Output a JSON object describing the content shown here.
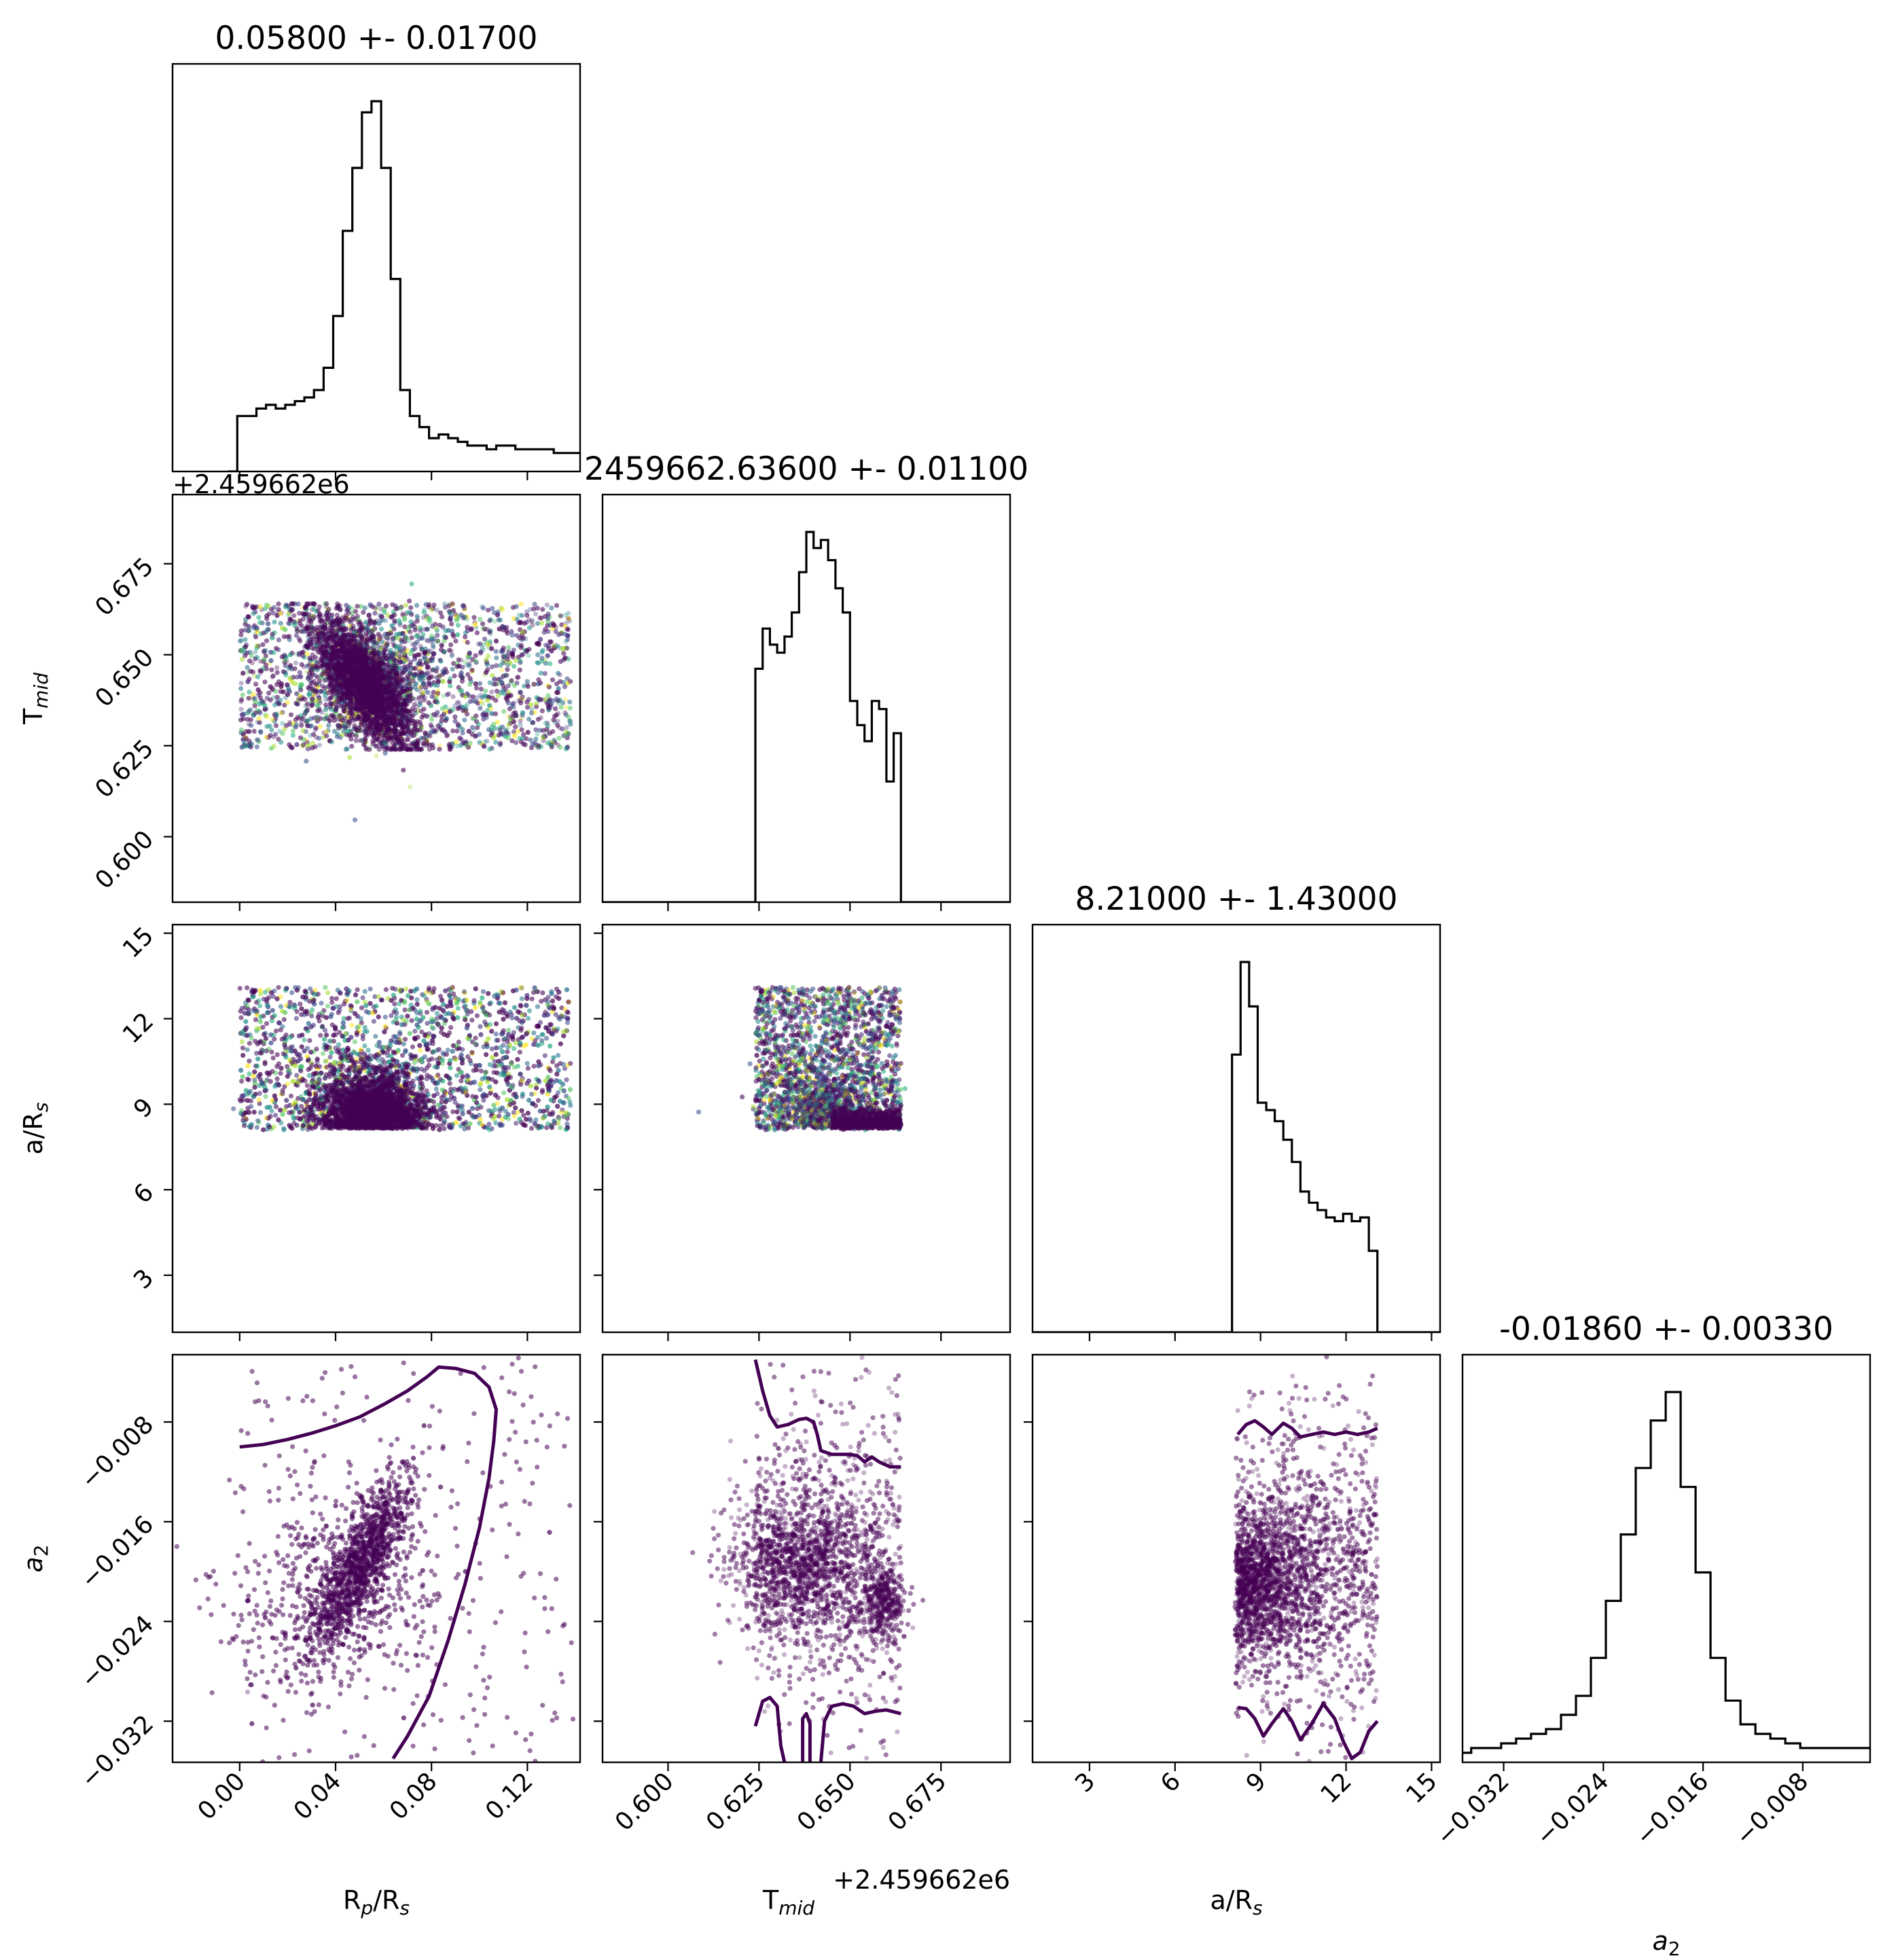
{
  "chart_data": {
    "type": "scatter",
    "variables": [
      {
        "key": "rp",
        "label": "R_p/R_s",
        "range": [
          -0.028,
          0.142
        ],
        "ticks": [
          0.0,
          0.04,
          0.08,
          0.12
        ],
        "tick_labels": [
          "0.00",
          "0.04",
          "0.08",
          "0.12"
        ],
        "title": "0.05800 +- 0.01700",
        "offset": ""
      },
      {
        "key": "tmid",
        "label": "T_mid",
        "range": [
          0.582,
          0.694
        ],
        "ticks": [
          0.6,
          0.625,
          0.65,
          0.675
        ],
        "tick_labels": [
          "0.600",
          "0.625",
          "0.650",
          "0.675"
        ],
        "title": "2459662.63600 +- 0.01100",
        "offset": "+2.459662e6"
      },
      {
        "key": "ars",
        "label": "a/R_s",
        "range": [
          1.0,
          15.3
        ],
        "ticks": [
          3,
          6,
          9,
          12,
          15
        ],
        "tick_labels": [
          "3",
          "6",
          "9",
          "12",
          "15"
        ],
        "title": "8.21000 +- 1.43000",
        "offset": ""
      },
      {
        "key": "a2",
        "label": "a_2",
        "range": [
          -0.0353,
          -0.0026
        ],
        "ticks": [
          -0.032,
          -0.024,
          -0.016,
          -0.008
        ],
        "tick_labels": [
          "−0.032",
          "−0.024",
          "−0.016",
          "−0.008"
        ],
        "title": "-0.01860 +- 0.00330",
        "offset": ""
      }
    ],
    "histograms": {
      "rp": {
        "bins": [
          -0.005,
          -0.001,
          0.003,
          0.007,
          0.011,
          0.015,
          0.019,
          0.023,
          0.027,
          0.031,
          0.035,
          0.039,
          0.043,
          0.047,
          0.051,
          0.055,
          0.059,
          0.063,
          0.067,
          0.071,
          0.075,
          0.079,
          0.083,
          0.087,
          0.091,
          0.095,
          0.099,
          0.103,
          0.107,
          0.111,
          0.115,
          0.119,
          0.123,
          0.127,
          0.131,
          0.135,
          0.139,
          0.142
        ],
        "counts": [
          0,
          15,
          15,
          17,
          18,
          17,
          18,
          19,
          20,
          22,
          28,
          42,
          65,
          82,
          97,
          100,
          82,
          52,
          22,
          15,
          12,
          9,
          10,
          9,
          8,
          7,
          7,
          6,
          7,
          7,
          6,
          6,
          6,
          6,
          5,
          5,
          5
        ]
      },
      "tmid": {
        "bins": [
          0.582,
          0.624,
          0.626,
          0.628,
          0.63,
          0.632,
          0.634,
          0.636,
          0.638,
          0.64,
          0.642,
          0.644,
          0.646,
          0.648,
          0.65,
          0.652,
          0.654,
          0.656,
          0.658,
          0.66,
          0.662,
          0.664,
          0.666,
          0.694
        ],
        "counts": [
          0,
          58,
          68,
          64,
          62,
          66,
          72,
          82,
          92,
          88,
          90,
          85,
          78,
          72,
          50,
          44,
          40,
          50,
          48,
          30,
          42,
          0,
          0
        ]
      },
      "ars": {
        "bins": [
          1.0,
          8.0,
          8.3,
          8.6,
          8.9,
          9.2,
          9.5,
          9.8,
          10.1,
          10.4,
          10.7,
          11.0,
          11.3,
          11.6,
          11.9,
          12.2,
          12.5,
          12.8,
          13.1,
          15.3
        ],
        "counts": [
          0,
          75,
          100,
          88,
          62,
          60,
          57,
          52,
          46,
          38,
          35,
          33,
          31,
          30,
          32,
          30,
          31,
          22,
          0
        ]
      },
      "a2": {
        "bins": [
          -0.0353,
          -0.0346,
          -0.0334,
          -0.0322,
          -0.031,
          -0.0298,
          -0.0286,
          -0.0274,
          -0.0262,
          -0.025,
          -0.0238,
          -0.0226,
          -0.0214,
          -0.0202,
          -0.019,
          -0.0178,
          -0.0166,
          -0.0154,
          -0.0142,
          -0.013,
          -0.0118,
          -0.0106,
          -0.0094,
          -0.0082,
          -0.007,
          -0.0058,
          -0.0046,
          -0.0026
        ],
        "counts": [
          2,
          3,
          3,
          4,
          5,
          6,
          7,
          10,
          14,
          22,
          34,
          48,
          62,
          72,
          78,
          58,
          40,
          22,
          13,
          8,
          6,
          5,
          4,
          3,
          3,
          3,
          3
        ]
      }
    },
    "contours": {
      "rp_a2": [
        [
          0.0,
          -0.01
        ],
        [
          0.01,
          -0.0098
        ],
        [
          0.02,
          -0.0094
        ],
        [
          0.03,
          -0.0089
        ],
        [
          0.04,
          -0.0083
        ],
        [
          0.05,
          -0.0076
        ],
        [
          0.06,
          -0.0066
        ],
        [
          0.07,
          -0.0055
        ],
        [
          0.078,
          -0.0044
        ],
        [
          0.083,
          -0.0036
        ],
        [
          0.09,
          -0.0037
        ],
        [
          0.098,
          -0.0041
        ],
        [
          0.104,
          -0.0052
        ],
        [
          0.107,
          -0.007
        ],
        [
          0.106,
          -0.0095
        ],
        [
          0.104,
          -0.0125
        ],
        [
          0.1,
          -0.0165
        ],
        [
          0.094,
          -0.021
        ],
        [
          0.087,
          -0.0255
        ],
        [
          0.079,
          -0.03
        ],
        [
          0.07,
          -0.0332
        ],
        [
          0.064,
          -0.035
        ]
      ],
      "tmid_a2_upper": [
        [
          0.624,
          -0.003
        ],
        [
          0.626,
          -0.0055
        ],
        [
          0.628,
          -0.0075
        ],
        [
          0.63,
          -0.0084
        ],
        [
          0.633,
          -0.0082
        ],
        [
          0.636,
          -0.0078
        ],
        [
          0.638,
          -0.0077
        ],
        [
          0.64,
          -0.008
        ],
        [
          0.641,
          -0.009
        ],
        [
          0.642,
          -0.0103
        ],
        [
          0.645,
          -0.0106
        ],
        [
          0.648,
          -0.0106
        ],
        [
          0.65,
          -0.0106
        ],
        [
          0.652,
          -0.0107
        ],
        [
          0.654,
          -0.0112
        ],
        [
          0.656,
          -0.0108
        ],
        [
          0.658,
          -0.0112
        ],
        [
          0.661,
          -0.0116
        ],
        [
          0.664,
          -0.0116
        ]
      ],
      "tmid_a2_lower": [
        [
          0.624,
          -0.0324
        ],
        [
          0.626,
          -0.0304
        ],
        [
          0.628,
          -0.0301
        ],
        [
          0.63,
          -0.0308
        ],
        [
          0.631,
          -0.034
        ],
        [
          0.632,
          -0.0353
        ]
      ],
      "tmid_a2_lower2": [
        [
          0.637,
          -0.0353
        ],
        [
          0.637,
          -0.0318
        ],
        [
          0.638,
          -0.0314
        ],
        [
          0.639,
          -0.0322
        ],
        [
          0.639,
          -0.0353
        ]
      ],
      "tmid_a2_lower3": [
        [
          0.642,
          -0.0353
        ],
        [
          0.643,
          -0.032
        ],
        [
          0.645,
          -0.0308
        ],
        [
          0.648,
          -0.0306
        ],
        [
          0.651,
          -0.0308
        ],
        [
          0.654,
          -0.0314
        ],
        [
          0.657,
          -0.0312
        ],
        [
          0.66,
          -0.0311
        ],
        [
          0.664,
          -0.0314
        ]
      ],
      "ars_a2_upper": [
        [
          8.2,
          -0.009
        ],
        [
          8.5,
          -0.0082
        ],
        [
          8.8,
          -0.0079
        ],
        [
          9.1,
          -0.0084
        ],
        [
          9.4,
          -0.009
        ],
        [
          9.8,
          -0.0081
        ],
        [
          10.1,
          -0.0085
        ],
        [
          10.4,
          -0.0092
        ],
        [
          10.8,
          -0.009
        ],
        [
          11.2,
          -0.0088
        ],
        [
          11.6,
          -0.009
        ],
        [
          12.0,
          -0.0088
        ],
        [
          12.4,
          -0.009
        ],
        [
          12.8,
          -0.0088
        ],
        [
          13.1,
          -0.0085
        ]
      ],
      "ars_a2_lower": [
        [
          8.2,
          -0.0309
        ],
        [
          8.5,
          -0.031
        ],
        [
          8.8,
          -0.0318
        ],
        [
          9.1,
          -0.0332
        ],
        [
          9.4,
          -0.0322
        ],
        [
          9.8,
          -0.031
        ],
        [
          10.1,
          -0.032
        ],
        [
          10.4,
          -0.0335
        ],
        [
          10.8,
          -0.0322
        ],
        [
          11.2,
          -0.0306
        ],
        [
          11.6,
          -0.0318
        ],
        [
          11.9,
          -0.0336
        ],
        [
          12.2,
          -0.035
        ],
        [
          12.5,
          -0.0345
        ],
        [
          12.8,
          -0.0328
        ],
        [
          13.1,
          -0.032
        ]
      ]
    },
    "scatter_regions": {
      "rp": [
        0.0,
        0.138
      ],
      "tmid": [
        0.624,
        0.664
      ],
      "ars": [
        8.1,
        13.1
      ],
      "a2": [
        -0.0353,
        -0.0026
      ]
    }
  }
}
